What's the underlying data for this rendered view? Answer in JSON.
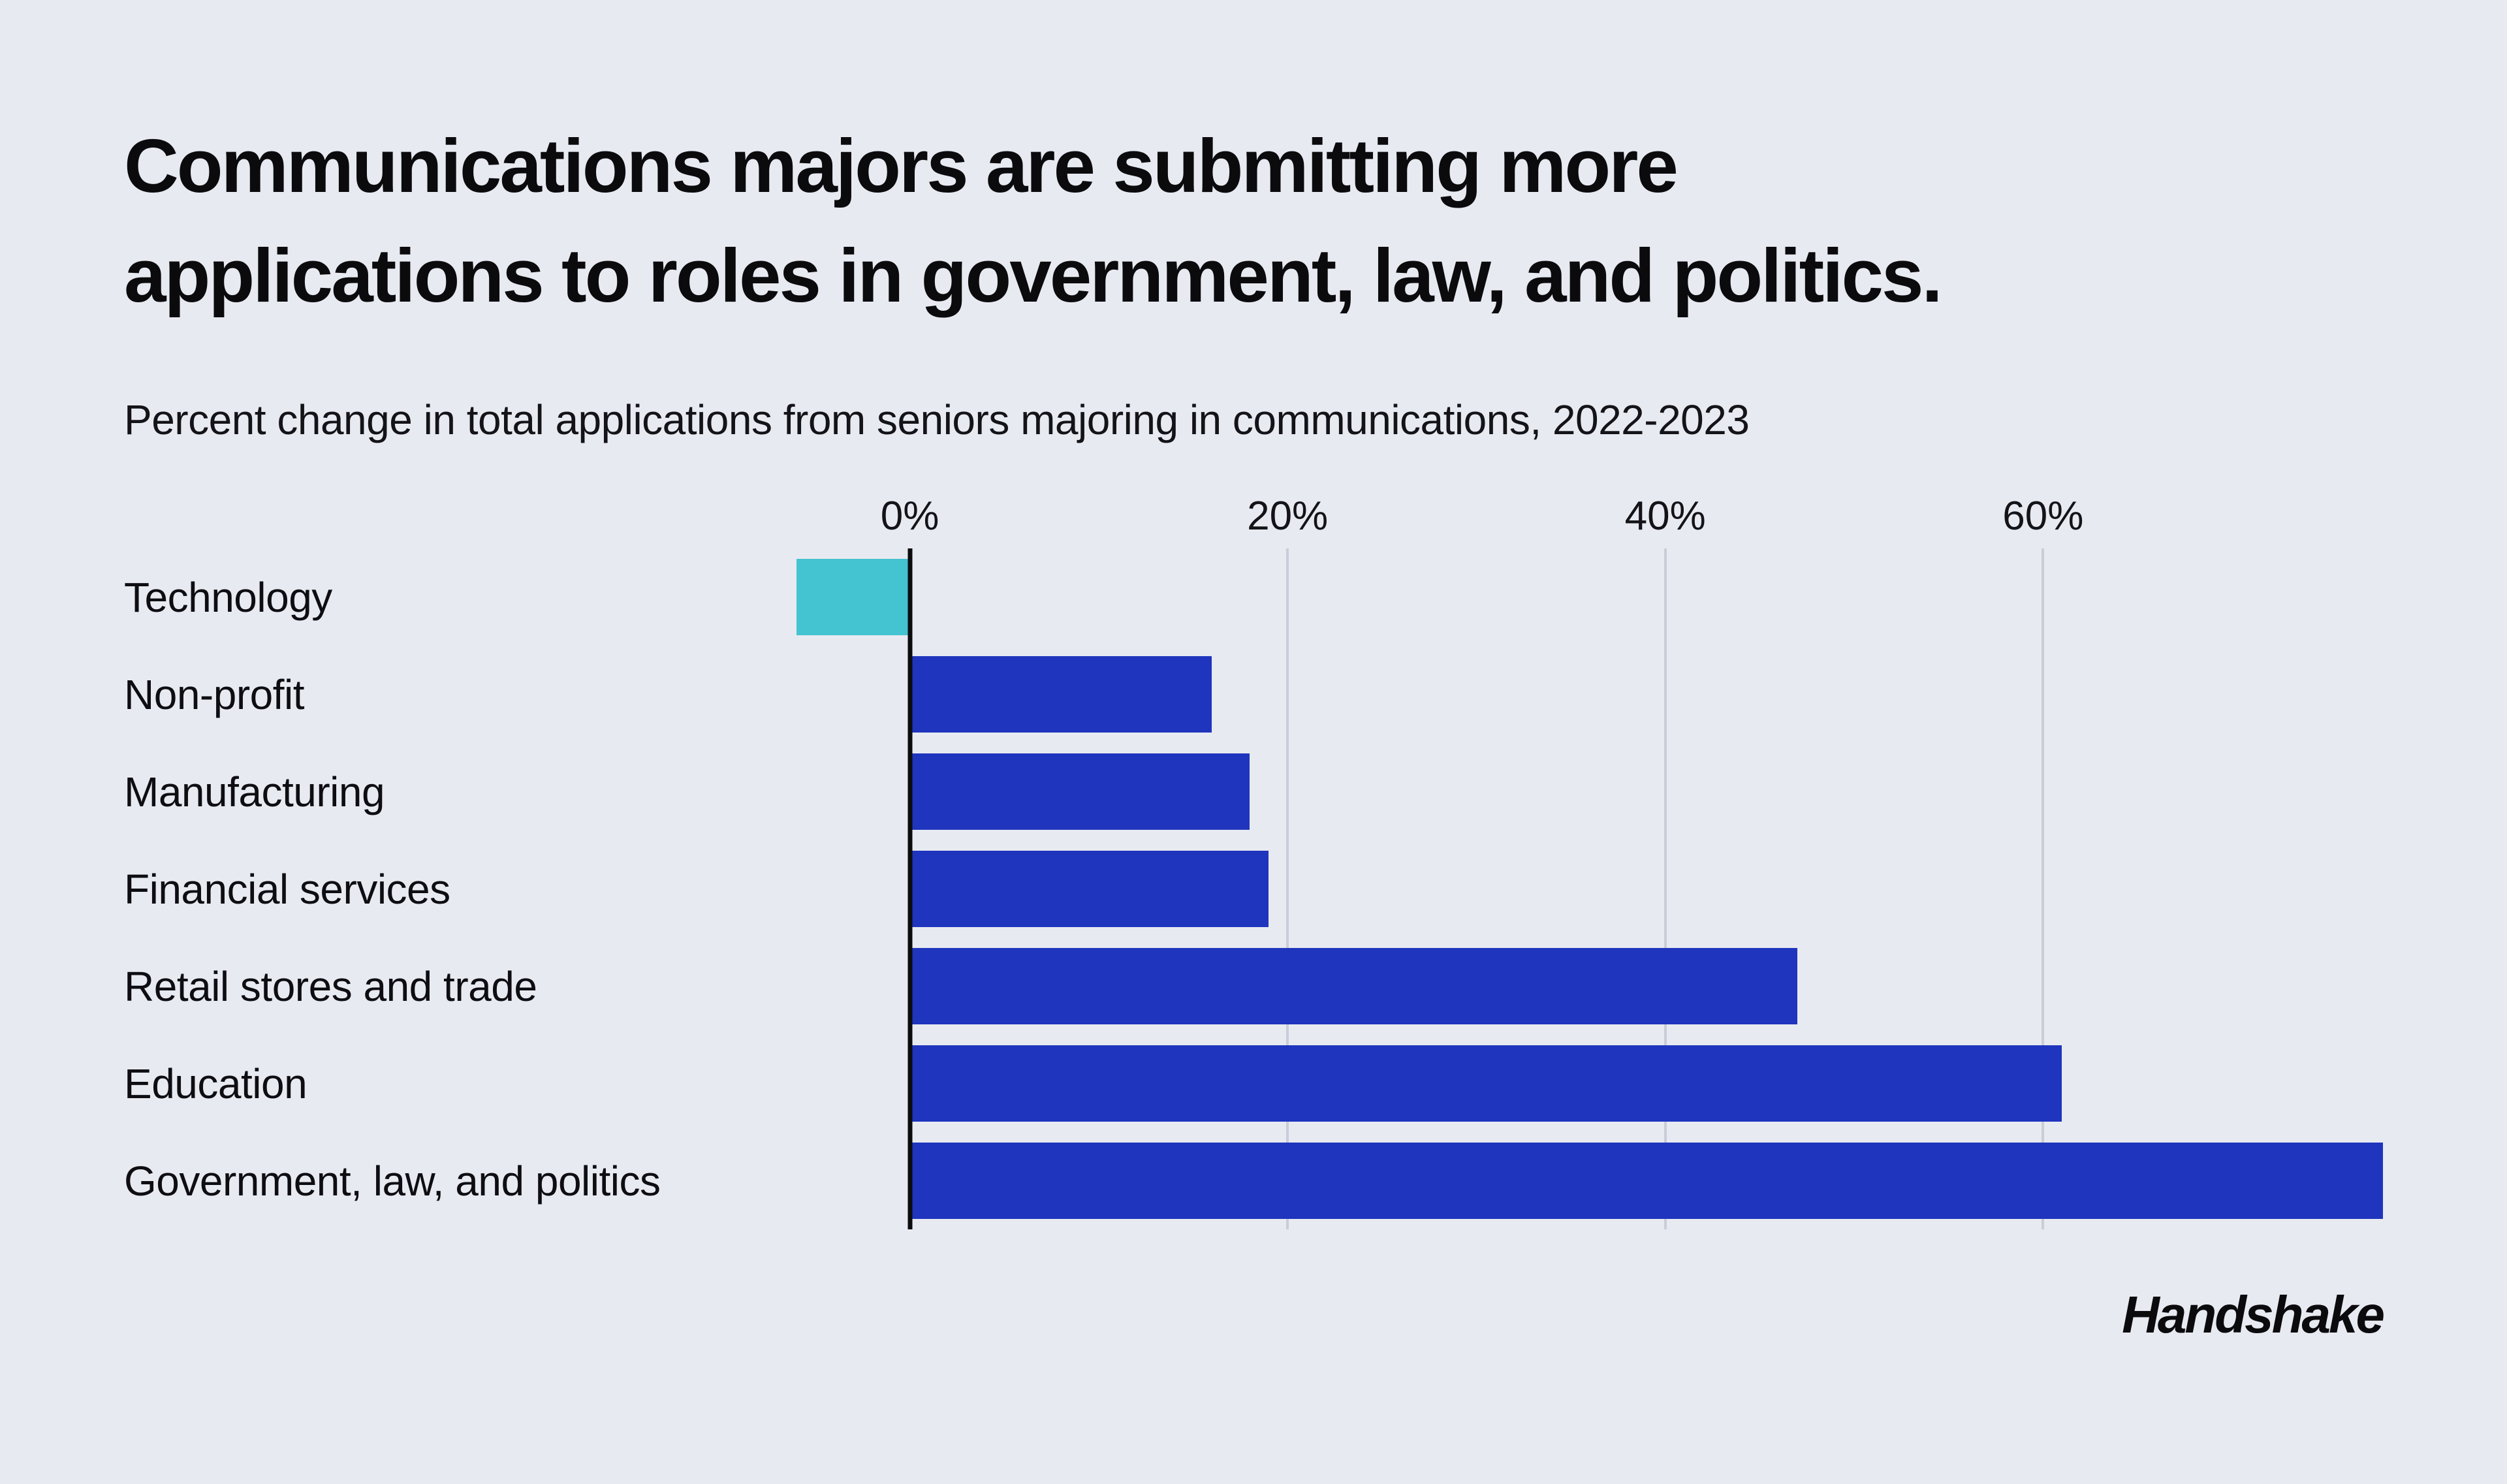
{
  "title_lines": [
    "Communications majors are submitting more",
    "applications to roles in government, law, and politics."
  ],
  "subtitle": "Percent change in total applications from seniors majoring in communications, 2022-2023",
  "logo_text": "Handshake",
  "chart_data": {
    "type": "bar",
    "orientation": "horizontal",
    "title": "Communications majors are submitting more applications to roles in government, law, and politics.",
    "subtitle": "Percent change in total applications from seniors majoring in communications, 2022-2023",
    "categories": [
      "Technology",
      "Non-profit",
      "Manufacturing",
      "Financial services",
      "Retail stores and trade",
      "Education",
      "Government, law, and politics"
    ],
    "values": [
      -6,
      16,
      18,
      19,
      47,
      61,
      78
    ],
    "unit": "%",
    "xlim": [
      -6,
      78
    ],
    "ticks": [
      {
        "value": 0,
        "label": "0%"
      },
      {
        "value": 20,
        "label": "20%"
      },
      {
        "value": 40,
        "label": "40%"
      },
      {
        "value": 60,
        "label": "60%"
      }
    ],
    "grid": true,
    "legend": false,
    "bar_color": "#1f35bd",
    "negative_bar_color": "#44c3d1",
    "gridline_color": "#c9cdd8",
    "zero_line_color": "#0c0c0e",
    "background_color": "#e8eaf1"
  }
}
